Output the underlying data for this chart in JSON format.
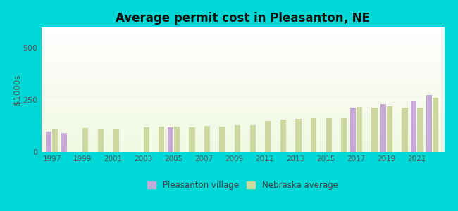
{
  "title": "Average permit cost in Pleasanton, NE",
  "ylabel": "$1000s",
  "background_outer": "#00d8d8",
  "ylim": [
    0,
    600
  ],
  "yticks": [
    0,
    250,
    500
  ],
  "years": [
    1997,
    1998,
    1999,
    2000,
    2001,
    2002,
    2003,
    2004,
    2005,
    2006,
    2007,
    2008,
    2009,
    2010,
    2011,
    2012,
    2013,
    2014,
    2015,
    2016,
    2017,
    2018,
    2019,
    2020,
    2021,
    2022
  ],
  "pleasanton": [
    100,
    90,
    null,
    null,
    null,
    null,
    null,
    null,
    118,
    null,
    null,
    null,
    null,
    null,
    null,
    null,
    null,
    null,
    null,
    null,
    215,
    null,
    230,
    null,
    245,
    275
  ],
  "nebraska": [
    108,
    null,
    115,
    108,
    110,
    null,
    120,
    123,
    123,
    120,
    125,
    123,
    128,
    128,
    148,
    155,
    160,
    163,
    163,
    163,
    218,
    215,
    220,
    215,
    215,
    260
  ],
  "pleasanton_color": "#c8aad8",
  "nebraska_color": "#ccd8a0",
  "bar_width": 0.38,
  "xtick_labels": [
    "1997",
    "1999",
    "2001",
    "2003",
    "2005",
    "2007",
    "2009",
    "2011",
    "2013",
    "2015",
    "2017",
    "2019",
    "2021"
  ],
  "xtick_positions": [
    1997,
    1999,
    2001,
    2003,
    2005,
    2007,
    2009,
    2011,
    2013,
    2015,
    2017,
    2019,
    2021
  ],
  "legend_labels": [
    "Pleasanton village",
    "Nebraska average"
  ]
}
